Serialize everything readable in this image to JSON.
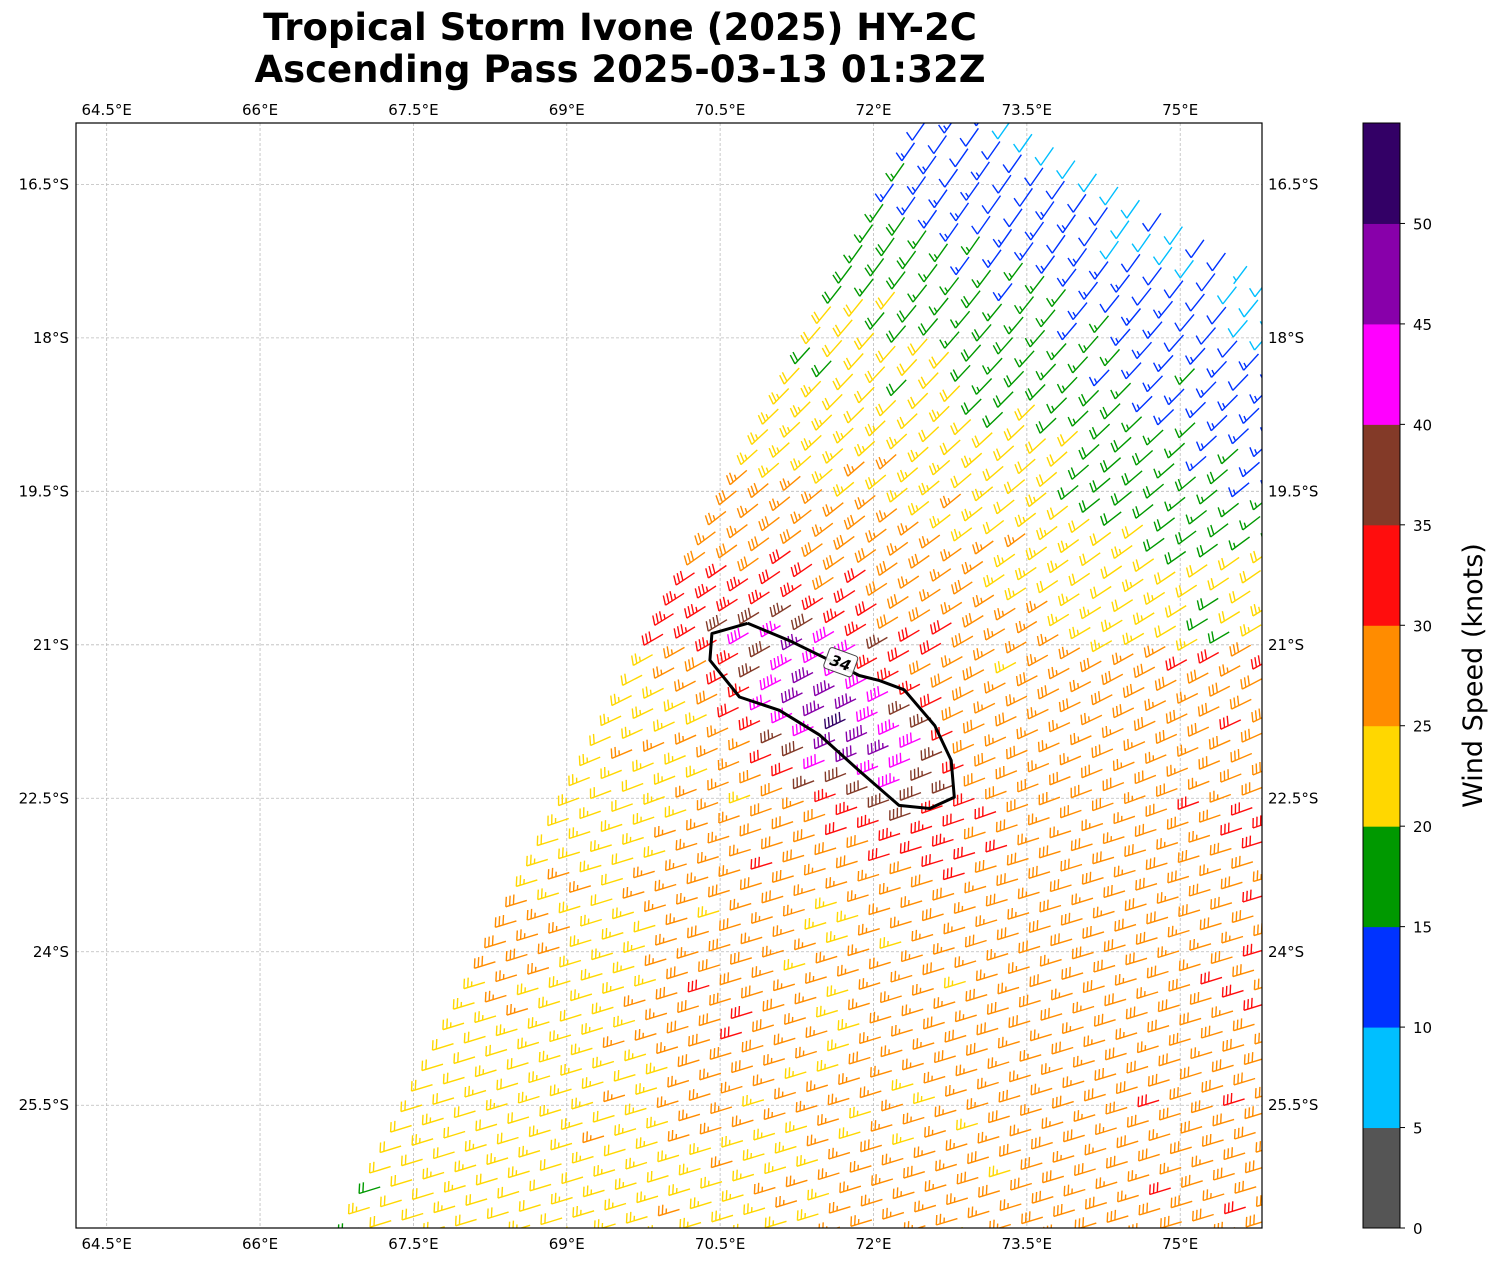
{
  "title_line1": "Tropical Storm Ivone (2025) HY-2C",
  "title_line2": "Ascending Pass 2025-03-13 01:32Z",
  "chart_data": {
    "type": "wind-barb-map",
    "title": "Tropical Storm Ivone (2025) HY-2C Ascending Pass 2025-03-13 01:32Z",
    "lon_range": [
      64.2,
      75.8
    ],
    "lat_range": [
      -26.7,
      -15.9
    ],
    "grid": true,
    "lon_ticks": [
      64.5,
      66,
      67.5,
      69,
      70.5,
      72,
      73.5,
      75
    ],
    "lon_tick_labels": [
      "64.5°E",
      "66°E",
      "67.5°E",
      "69°E",
      "70.5°E",
      "72°E",
      "73.5°E",
      "75°E"
    ],
    "lat_ticks": [
      -16.5,
      -18,
      -19.5,
      -21,
      -22.5,
      -24,
      -25.5
    ],
    "lat_tick_labels": [
      "16.5°S",
      "18°S",
      "19.5°S",
      "21°S",
      "22.5°S",
      "24°S",
      "25.5°S"
    ],
    "swath_left_edge": [
      [
        72.5,
        -15.9
      ],
      [
        66.97,
        -26.7
      ]
    ],
    "storm_center": [
      71.7,
      -21.7
    ],
    "max_wind_kt": 48,
    "contour": {
      "level": 34,
      "label": "34",
      "label_position": [
        71.68,
        -21.17
      ],
      "points": [
        [
          70.77,
          -20.79
        ],
        [
          70.42,
          -20.89
        ],
        [
          70.4,
          -21.15
        ],
        [
          70.69,
          -21.51
        ],
        [
          71.08,
          -21.64
        ],
        [
          71.47,
          -21.88
        ],
        [
          71.86,
          -22.23
        ],
        [
          72.25,
          -22.57
        ],
        [
          72.55,
          -22.6
        ],
        [
          72.79,
          -22.49
        ],
        [
          72.76,
          -22.13
        ],
        [
          72.6,
          -21.79
        ],
        [
          72.3,
          -21.44
        ],
        [
          72.06,
          -21.35
        ],
        [
          71.86,
          -21.3
        ],
        [
          71.57,
          -21.15
        ],
        [
          71.18,
          -20.96
        ],
        [
          70.77,
          -20.79
        ]
      ]
    },
    "colorbar": {
      "label": "Wind Speed (knots)",
      "bounds": [
        0,
        5,
        10,
        15,
        20,
        25,
        30,
        35,
        40,
        45,
        50,
        55
      ],
      "tick_values": [
        0,
        5,
        10,
        15,
        20,
        25,
        30,
        35,
        40,
        45,
        50
      ],
      "tick_labels": [
        "0",
        "5",
        "10",
        "15",
        "20",
        "25",
        "30",
        "35",
        "40",
        "45",
        "50"
      ],
      "colors": [
        "#555555",
        "#00bfff",
        "#0033ff",
        "#009900",
        "#ffd700",
        "#ff8c00",
        "#ff0d0d",
        "#833a28",
        "#ff00ff",
        "#8800aa",
        "#330066"
      ]
    }
  }
}
